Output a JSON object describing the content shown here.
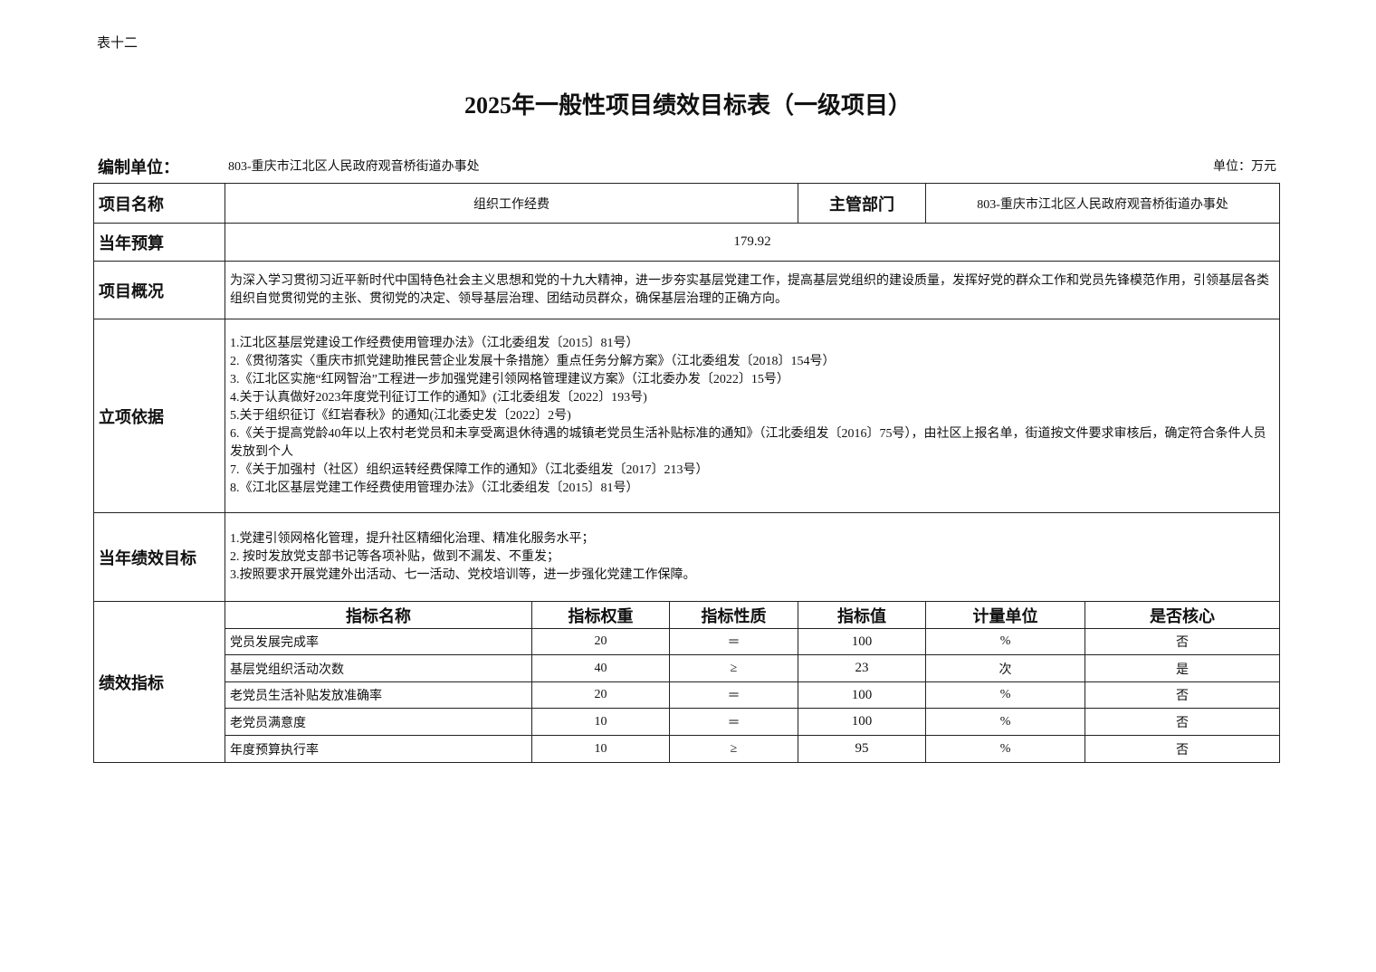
{
  "table_tag": "表十二",
  "title": "2025年一般性项目绩效目标表（一级项目）",
  "org_label": "编制单位：",
  "org_value": "803-重庆市江北区人民政府观音桥街道办事处",
  "unit": "单位：万元",
  "project_name_label": "项目名称",
  "project_name": "组织工作经费",
  "dept_label": "主管部门",
  "dept": "803-重庆市江北区人民政府观音桥街道办事处",
  "budget_label": "当年预算",
  "budget": "179.92",
  "overview_label": "项目概况",
  "overview": "为深入学习贯彻习近平新时代中国特色社会主义思想和党的十九大精神，进一步夯实基层党建工作，提高基层党组织的建设质量，发挥好党的群众工作和党员先锋模范作用，引领基层各类组织自觉贯彻党的主张、贯彻党的决定、领导基层治理、团结动员群众，确保基层治理的正确方向。",
  "basis_label": "立项依据",
  "basis": [
    "1.江北区基层党建设工作经费使用管理办法》（江北委组发〔2015〕81号）",
    "2.《贯彻落实〈重庆市抓党建助推民营企业发展十条措施〉重点任务分解方案》（江北委组发〔2018〕154号）",
    "3.《江北区实施“红网智治”工程进一步加强党建引领网格管理建议方案》（江北委办发〔2022〕15号）",
    "4.关于认真做好2023年度党刊征订工作的通知》(江北委组发〔2022〕193号)",
    "5.关于组织征订《红岩春秋》的通知(江北委史发〔2022〕2号)",
    "6.《关于提高党龄40年以上农村老党员和未享受离退休待遇的城镇老党员生活补贴标准的通知》（江北委组发〔2016〕75号），由社区上报名单，街道按文件要求审核后，确定符合条件人员发放到个人",
    "7.《关于加强村（社区）组织运转经费保障工作的通知》（江北委组发〔2017〕213号）",
    "8.《江北区基层党建工作经费使用管理办法》（江北委组发〔2015〕81号）"
  ],
  "goals_label": "当年绩效目标",
  "goals": [
    "1.党建引领网格化管理，提升社区精细化治理、精准化服务水平；",
    "2. 按时发放党支部书记等各项补贴，做到不漏发、不重发；",
    "3.按照要求开展党建外出活动、七一活动、党校培训等，进一步强化党建工作保障。"
  ],
  "indicators_label": "绩效指标",
  "indicator_headers": [
    "指标名称",
    "指标权重",
    "指标性质",
    "指标值",
    "计量单位",
    "是否核心"
  ],
  "indicators": [
    [
      "党员发展完成率",
      "20",
      "＝",
      "100",
      "%",
      "否"
    ],
    [
      "基层党组织活动次数",
      "40",
      "≥",
      "23",
      "次",
      "是"
    ],
    [
      "老党员生活补贴发放准确率",
      "20",
      "＝",
      "100",
      "%",
      "否"
    ],
    [
      "老党员满意度",
      "10",
      "＝",
      "100",
      "%",
      "否"
    ],
    [
      "年度预算执行率",
      "10",
      "≥",
      "95",
      "%",
      "否"
    ]
  ]
}
